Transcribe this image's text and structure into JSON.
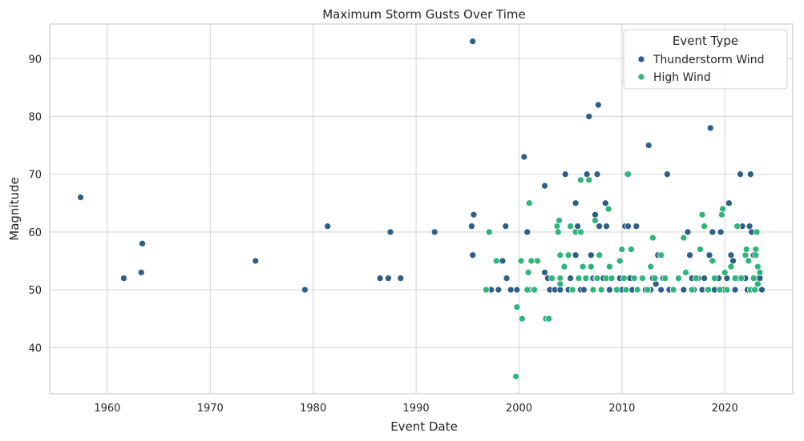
{
  "chart_data": {
    "type": "scatter",
    "title": "Maximum Storm Gusts Over Time",
    "xlabel": "Event Date",
    "ylabel": "Magnitude",
    "xlim": [
      1954.4,
      2026.6
    ],
    "ylim": [
      32,
      96
    ],
    "x_ticks": [
      "1960",
      "1970",
      "1980",
      "1990",
      "2000",
      "2010",
      "2020"
    ],
    "y_ticks": [
      "40",
      "50",
      "60",
      "70",
      "80",
      "90"
    ],
    "grid": true,
    "legend": {
      "title": "Event Type",
      "placement": "top-right",
      "entries": [
        "Thunderstorm Wind",
        "High Wind"
      ]
    },
    "colors": {
      "Thunderstorm Wind": "#2e5f86",
      "High Wind": "#2fb47c"
    },
    "series": [
      {
        "name": "Thunderstorm Wind",
        "points": [
          [
            1957.4,
            66
          ],
          [
            1961.6,
            52
          ],
          [
            1963.3,
            53
          ],
          [
            1963.4,
            58
          ],
          [
            1974.4,
            55
          ],
          [
            1979.2,
            50
          ],
          [
            1981.4,
            61
          ],
          [
            1986.5,
            52
          ],
          [
            1987.3,
            52
          ],
          [
            1987.5,
            60
          ],
          [
            1988.5,
            52
          ],
          [
            1991.8,
            60
          ],
          [
            1995.5,
            93
          ],
          [
            1995.4,
            61
          ],
          [
            1995.6,
            63
          ],
          [
            1995.5,
            56
          ],
          [
            1997.3,
            50
          ],
          [
            1998.0,
            50
          ],
          [
            1998.4,
            55
          ],
          [
            1998.7,
            61
          ],
          [
            1998.8,
            52
          ],
          [
            1999.2,
            50
          ],
          [
            1999.8,
            50
          ],
          [
            2000.5,
            73
          ],
          [
            2000.8,
            60
          ],
          [
            2001.0,
            50
          ],
          [
            2001.5,
            50
          ],
          [
            2002.5,
            68
          ],
          [
            2002.5,
            53
          ],
          [
            2002.8,
            52
          ],
          [
            2003.0,
            50
          ],
          [
            2003.5,
            50
          ],
          [
            2004.0,
            50
          ],
          [
            2004.5,
            70
          ],
          [
            2004.8,
            50
          ],
          [
            2005.0,
            52
          ],
          [
            2005.5,
            65
          ],
          [
            2005.5,
            56
          ],
          [
            2005.7,
            61
          ],
          [
            2006.0,
            50
          ],
          [
            2006.3,
            50
          ],
          [
            2006.5,
            52
          ],
          [
            2006.6,
            70
          ],
          [
            2006.8,
            80
          ],
          [
            2007.0,
            56
          ],
          [
            2007.2,
            52
          ],
          [
            2007.4,
            63
          ],
          [
            2007.5,
            52
          ],
          [
            2007.6,
            70
          ],
          [
            2007.7,
            82
          ],
          [
            2007.8,
            61
          ],
          [
            2008.0,
            50
          ],
          [
            2008.2,
            52
          ],
          [
            2008.4,
            65
          ],
          [
            2008.5,
            61
          ],
          [
            2008.8,
            50
          ],
          [
            2009.0,
            52
          ],
          [
            2009.5,
            50
          ],
          [
            2009.8,
            52
          ],
          [
            2010.0,
            50
          ],
          [
            2010.3,
            61
          ],
          [
            2010.5,
            70
          ],
          [
            2010.6,
            61
          ],
          [
            2010.8,
            52
          ],
          [
            2011.0,
            50
          ],
          [
            2011.4,
            61
          ],
          [
            2011.5,
            50
          ],
          [
            2012.0,
            52
          ],
          [
            2012.3,
            50
          ],
          [
            2012.6,
            75
          ],
          [
            2012.8,
            50
          ],
          [
            2013.0,
            52
          ],
          [
            2013.3,
            51
          ],
          [
            2013.5,
            56
          ],
          [
            2013.8,
            50
          ],
          [
            2014.0,
            52
          ],
          [
            2014.4,
            70
          ],
          [
            2014.6,
            50
          ],
          [
            2015.0,
            50
          ],
          [
            2015.5,
            52
          ],
          [
            2016.0,
            50
          ],
          [
            2016.4,
            60
          ],
          [
            2016.6,
            56
          ],
          [
            2016.8,
            52
          ],
          [
            2017.0,
            50
          ],
          [
            2017.4,
            52
          ],
          [
            2017.8,
            50
          ],
          [
            2018.0,
            52
          ],
          [
            2018.3,
            50
          ],
          [
            2018.5,
            56
          ],
          [
            2018.6,
            78
          ],
          [
            2018.8,
            60
          ],
          [
            2019.0,
            50
          ],
          [
            2019.4,
            52
          ],
          [
            2019.6,
            60
          ],
          [
            2019.9,
            50
          ],
          [
            2020.2,
            52
          ],
          [
            2020.4,
            65
          ],
          [
            2020.6,
            56
          ],
          [
            2020.8,
            55
          ],
          [
            2021.0,
            50
          ],
          [
            2021.2,
            52
          ],
          [
            2021.5,
            70
          ],
          [
            2021.7,
            61
          ],
          [
            2022.0,
            52
          ],
          [
            2022.2,
            50
          ],
          [
            2022.4,
            61
          ],
          [
            2022.5,
            70
          ],
          [
            2022.6,
            60
          ],
          [
            2022.8,
            56
          ],
          [
            2023.0,
            50
          ],
          [
            2023.2,
            52
          ],
          [
            2023.4,
            52
          ],
          [
            2023.6,
            50
          ]
        ]
      },
      {
        "name": "High Wind",
        "points": [
          [
            1996.8,
            50
          ],
          [
            1997.1,
            60
          ],
          [
            1997.8,
            55
          ],
          [
            1999.7,
            35
          ],
          [
            1999.8,
            47
          ],
          [
            2000.2,
            55
          ],
          [
            2000.3,
            45
          ],
          [
            2000.8,
            50
          ],
          [
            2000.9,
            53
          ],
          [
            2001.0,
            65
          ],
          [
            2001.2,
            55
          ],
          [
            2001.5,
            50
          ],
          [
            2001.8,
            55
          ],
          [
            2002.6,
            45
          ],
          [
            2002.9,
            45
          ],
          [
            2003.2,
            52
          ],
          [
            2003.7,
            61
          ],
          [
            2003.8,
            60
          ],
          [
            2003.9,
            62
          ],
          [
            2004.0,
            56
          ],
          [
            2004.0,
            52
          ],
          [
            2004.0,
            51
          ],
          [
            2004.4,
            54
          ],
          [
            2004.8,
            56
          ],
          [
            2005.0,
            61
          ],
          [
            2005.2,
            50
          ],
          [
            2005.5,
            60
          ],
          [
            2005.8,
            52
          ],
          [
            2006.0,
            69
          ],
          [
            2006.0,
            60
          ],
          [
            2006.2,
            54
          ],
          [
            2006.5,
            52
          ],
          [
            2006.8,
            69
          ],
          [
            2007.0,
            54
          ],
          [
            2007.2,
            50
          ],
          [
            2007.4,
            62
          ],
          [
            2007.6,
            52
          ],
          [
            2007.8,
            56
          ],
          [
            2008.0,
            50
          ],
          [
            2008.5,
            52
          ],
          [
            2008.7,
            64
          ],
          [
            2008.8,
            54
          ],
          [
            2009.0,
            52
          ],
          [
            2009.5,
            50
          ],
          [
            2009.8,
            55
          ],
          [
            2010.0,
            57
          ],
          [
            2010.2,
            52
          ],
          [
            2010.4,
            50
          ],
          [
            2010.6,
            70
          ],
          [
            2010.9,
            57
          ],
          [
            2011.2,
            52
          ],
          [
            2011.5,
            50
          ],
          [
            2012.0,
            52
          ],
          [
            2012.5,
            50
          ],
          [
            2012.8,
            54
          ],
          [
            2013.0,
            59
          ],
          [
            2013.2,
            52
          ],
          [
            2013.8,
            56
          ],
          [
            2014.2,
            52
          ],
          [
            2015.0,
            50
          ],
          [
            2015.5,
            52
          ],
          [
            2016.0,
            59
          ],
          [
            2016.2,
            53
          ],
          [
            2016.8,
            50
          ],
          [
            2017.2,
            52
          ],
          [
            2017.6,
            57
          ],
          [
            2017.8,
            63
          ],
          [
            2018.0,
            61
          ],
          [
            2018.4,
            50
          ],
          [
            2018.8,
            55
          ],
          [
            2019.0,
            52
          ],
          [
            2019.5,
            50
          ],
          [
            2019.7,
            63
          ],
          [
            2019.8,
            64
          ],
          [
            2020.0,
            53
          ],
          [
            2020.2,
            50
          ],
          [
            2020.6,
            54
          ],
          [
            2021.0,
            52
          ],
          [
            2021.2,
            61
          ],
          [
            2021.6,
            52
          ],
          [
            2022.0,
            56
          ],
          [
            2022.1,
            57
          ],
          [
            2022.3,
            55
          ],
          [
            2022.5,
            50
          ],
          [
            2022.8,
            52
          ],
          [
            2023.0,
            57
          ],
          [
            2023.0,
            56
          ],
          [
            2023.1,
            60
          ],
          [
            2023.2,
            54
          ],
          [
            2023.4,
            53
          ],
          [
            2023.2,
            51
          ],
          [
            2022.9,
            50
          ]
        ]
      }
    ]
  }
}
